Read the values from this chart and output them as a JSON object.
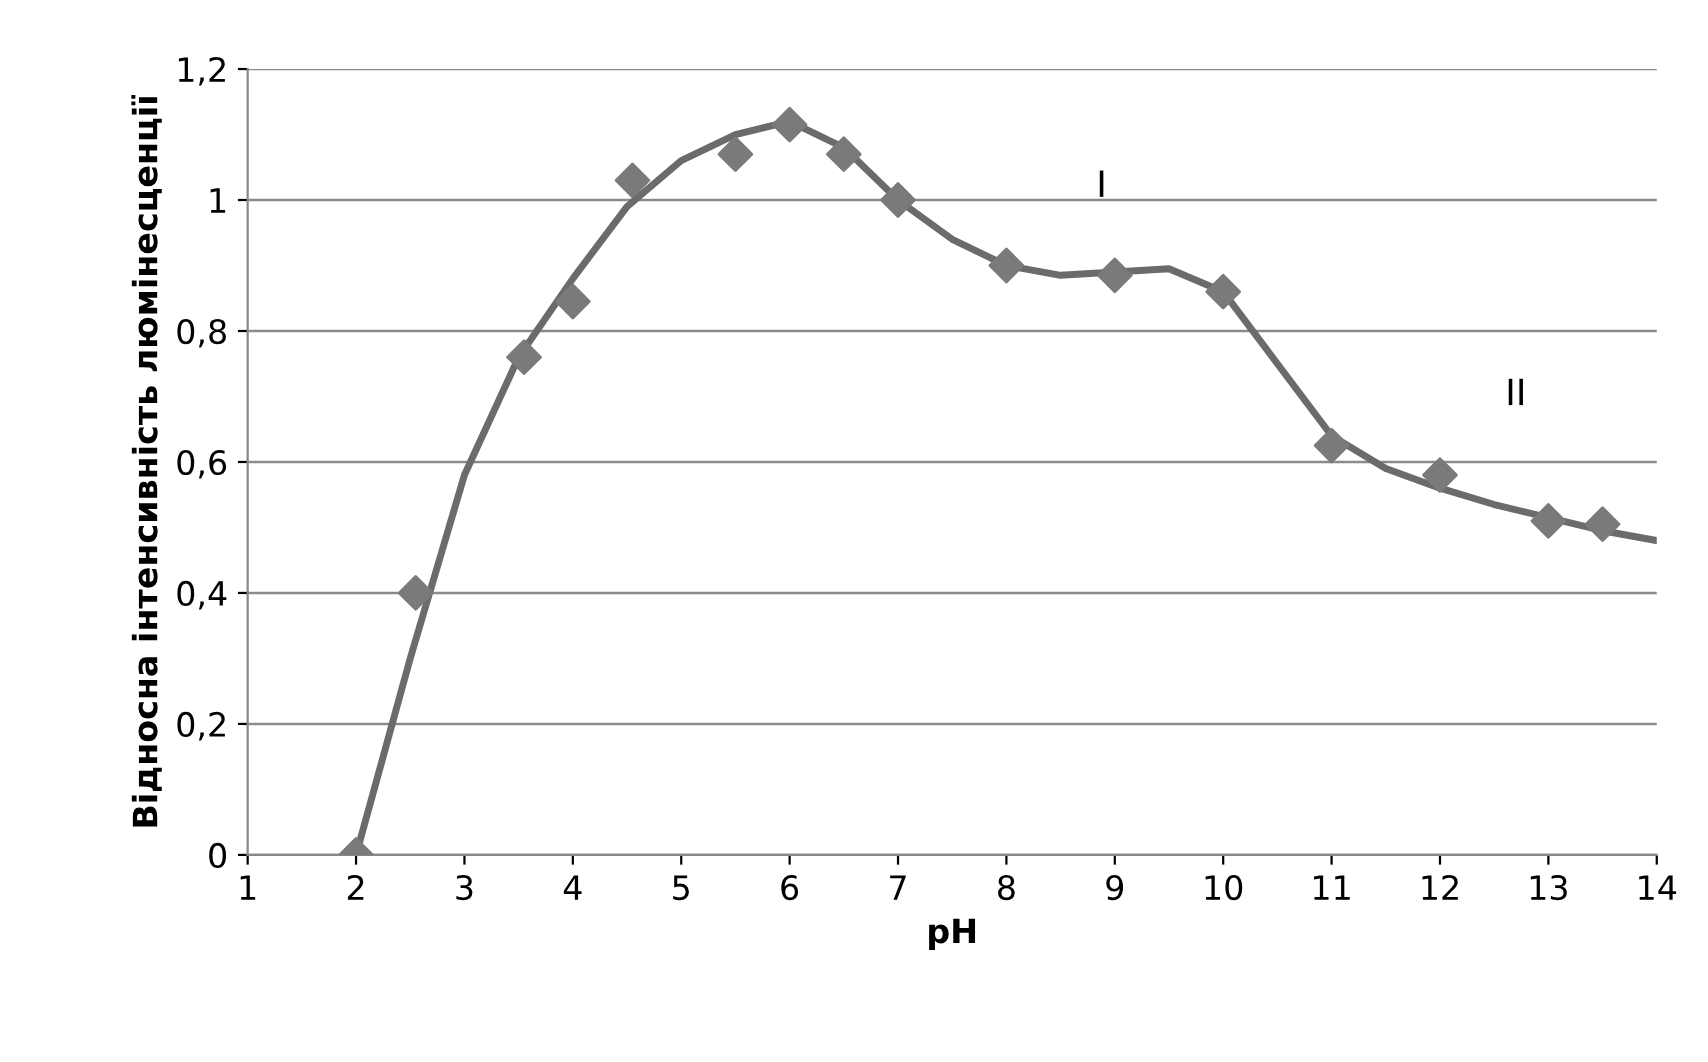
{
  "chart_data": {
    "type": "scatter",
    "xlabel": "pH",
    "ylabel": "Відносна інтенсивність люмінесценції",
    "xlim": [
      1,
      14
    ],
    "xticks": [
      1,
      2,
      3,
      4,
      5,
      6,
      7,
      8,
      9,
      10,
      11,
      12,
      13,
      14
    ],
    "ylim": [
      0,
      1.2
    ],
    "yticks": [
      0,
      {
        "value": 0.2,
        "label": "0,2"
      },
      {
        "value": 0.4,
        "label": "0,4"
      },
      {
        "value": 0.6,
        "label": "0,6"
      },
      {
        "value": 0.8,
        "label": "0,8"
      },
      1,
      {
        "value": 1.2,
        "label": "1,2"
      }
    ],
    "grid": "y",
    "marker": "diamond",
    "series": [
      {
        "color": "#7a7a7a",
        "x": [
          2,
          2.55,
          3.55,
          4,
          4.55,
          5.5,
          6,
          6.5,
          7,
          8,
          9,
          10,
          11,
          12,
          13,
          13.5
        ],
        "values": [
          0,
          0.4,
          0.76,
          0.845,
          1.03,
          1.07,
          1.115,
          1.07,
          1.0,
          0.9,
          0.885,
          0.86,
          0.625,
          0.58,
          0.51,
          0.505
        ]
      },
      {
        "type": "line",
        "color": "#6b6b6b",
        "marker": "none",
        "line_style": "solid",
        "x": [
          2,
          2.5,
          3,
          3.5,
          4,
          4.5,
          5,
          5.5,
          6,
          6.5,
          7,
          7.5,
          8,
          8.5,
          9,
          9.5,
          10,
          10.5,
          11,
          11.5,
          12,
          12.5,
          13,
          13.5,
          14
        ],
        "values": [
          0,
          0.3,
          0.58,
          0.76,
          0.88,
          0.99,
          1.06,
          1.1,
          1.12,
          1.08,
          1.0,
          0.94,
          0.9,
          0.885,
          0.89,
          0.895,
          0.86,
          0.75,
          0.64,
          0.59,
          0.56,
          0.535,
          0.515,
          0.495,
          0.48
        ]
      }
    ],
    "annotations": [
      "I",
      "II"
    ]
  }
}
